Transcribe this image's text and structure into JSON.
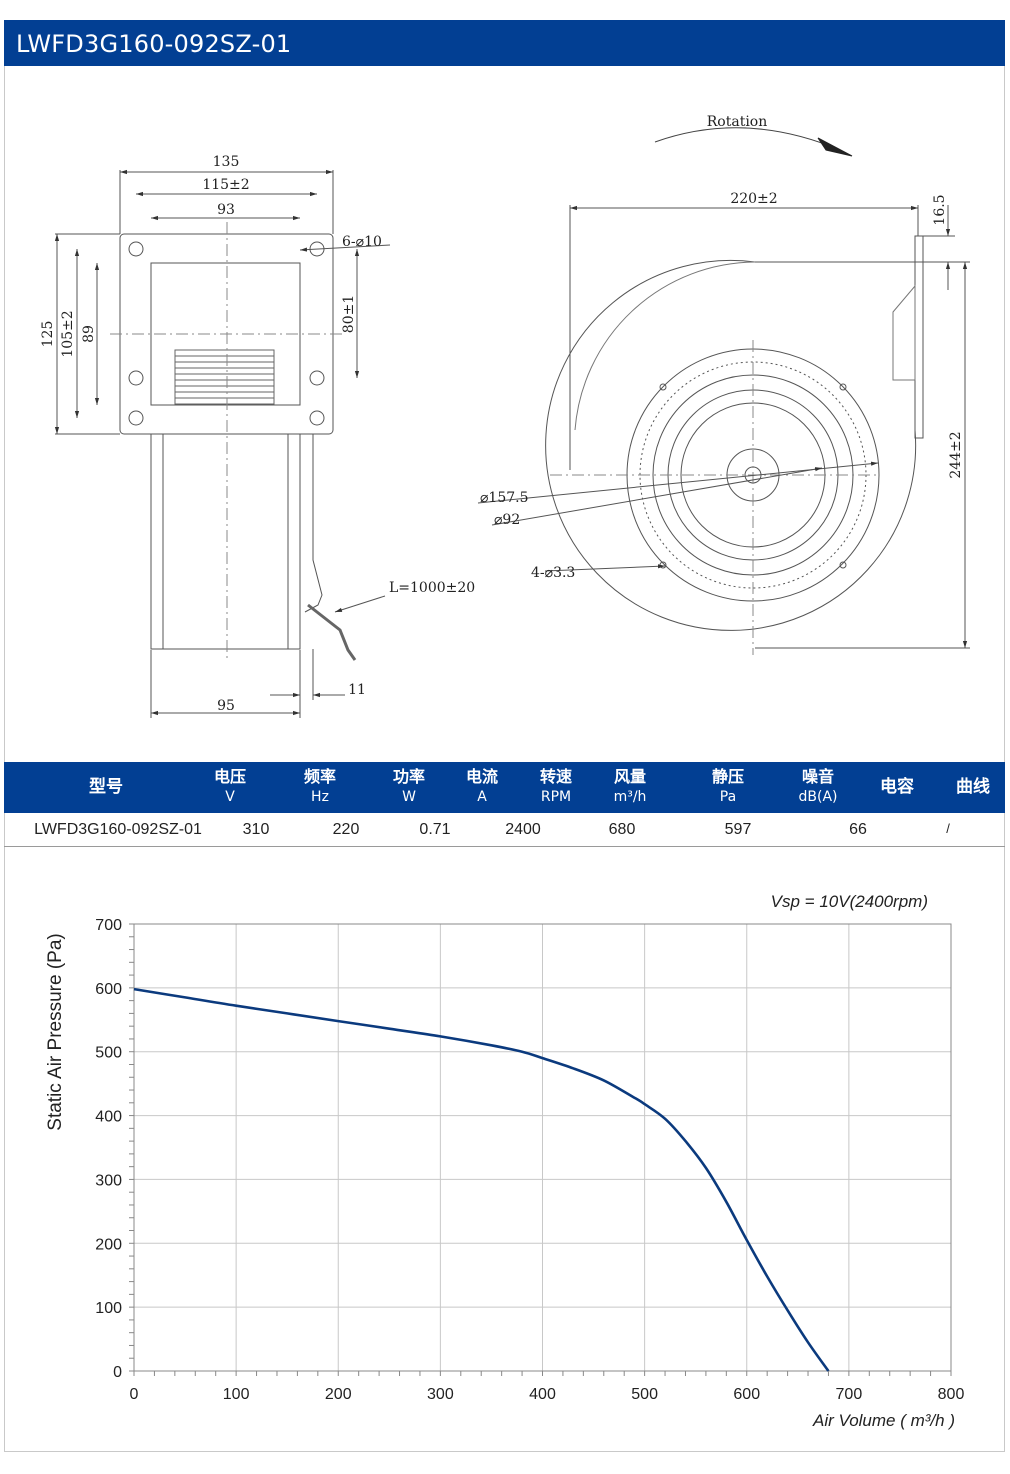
{
  "header": {
    "title": "LWFD3G160-092SZ-01"
  },
  "drawing": {
    "side_view": {
      "dim_135": "135",
      "dim_115": "115±2",
      "dim_93": "93",
      "dim_hole": "6-⌀10",
      "dim_125": "125",
      "dim_105": "105±2",
      "dim_89": "89",
      "dim_80": "80±1",
      "dim_cable": "L=1000±20",
      "dim_95": "95",
      "dim_11": "11"
    },
    "front_view": {
      "rotation": "Rotation",
      "dim_220": "220±2",
      "dim_16_5": "16.5",
      "dim_244": "244±2",
      "dim_157_5": "⌀157.5",
      "dim_92": "⌀92",
      "dim_4_holes": "4-⌀3.3"
    }
  },
  "spec_table": {
    "headers": [
      {
        "cn": "型号",
        "unit": ""
      },
      {
        "cn": "电压",
        "unit": "V"
      },
      {
        "cn": "频率",
        "unit": "Hz"
      },
      {
        "cn": "功率",
        "unit": "W"
      },
      {
        "cn": "电流",
        "unit": "A"
      },
      {
        "cn": "转速",
        "unit": "RPM"
      },
      {
        "cn": "风量",
        "unit": "m³/h"
      },
      {
        "cn": "静压",
        "unit": "Pa"
      },
      {
        "cn": "噪音",
        "unit": "dB(A)"
      },
      {
        "cn": "电容",
        "unit": ""
      },
      {
        "cn": "曲线",
        "unit": ""
      }
    ],
    "row": {
      "model": "LWFD3G160-092SZ-01",
      "voltage": "310",
      "frequency": "220",
      "power": "0.71",
      "current": "2400",
      "speed": "680",
      "airflow": "597",
      "noise": "66",
      "capacitor": "/"
    }
  },
  "chart_data": {
    "type": "line",
    "annotation": "Vsp = 10V(2400rpm)",
    "xlabel": "Air Volume ( m³/h )",
    "ylabel": "Static Air Pressure  (Pa)",
    "xlim": [
      0,
      800
    ],
    "ylim": [
      0,
      700
    ],
    "x_ticks": [
      0,
      100,
      200,
      300,
      400,
      500,
      600,
      700,
      800
    ],
    "y_ticks": [
      0,
      100,
      200,
      300,
      400,
      500,
      600,
      700
    ],
    "grid": true,
    "series": [
      {
        "color": "#0b3a7e",
        "points": [
          [
            0,
            598
          ],
          [
            50,
            585
          ],
          [
            100,
            572
          ],
          [
            150,
            560
          ],
          [
            200,
            548
          ],
          [
            250,
            536
          ],
          [
            300,
            524
          ],
          [
            350,
            510
          ],
          [
            380,
            500
          ],
          [
            400,
            490
          ],
          [
            430,
            474
          ],
          [
            460,
            455
          ],
          [
            490,
            428
          ],
          [
            500,
            418
          ],
          [
            520,
            395
          ],
          [
            540,
            360
          ],
          [
            560,
            318
          ],
          [
            580,
            265
          ],
          [
            600,
            205
          ],
          [
            620,
            148
          ],
          [
            640,
            95
          ],
          [
            660,
            45
          ],
          [
            680,
            0
          ]
        ]
      }
    ]
  }
}
